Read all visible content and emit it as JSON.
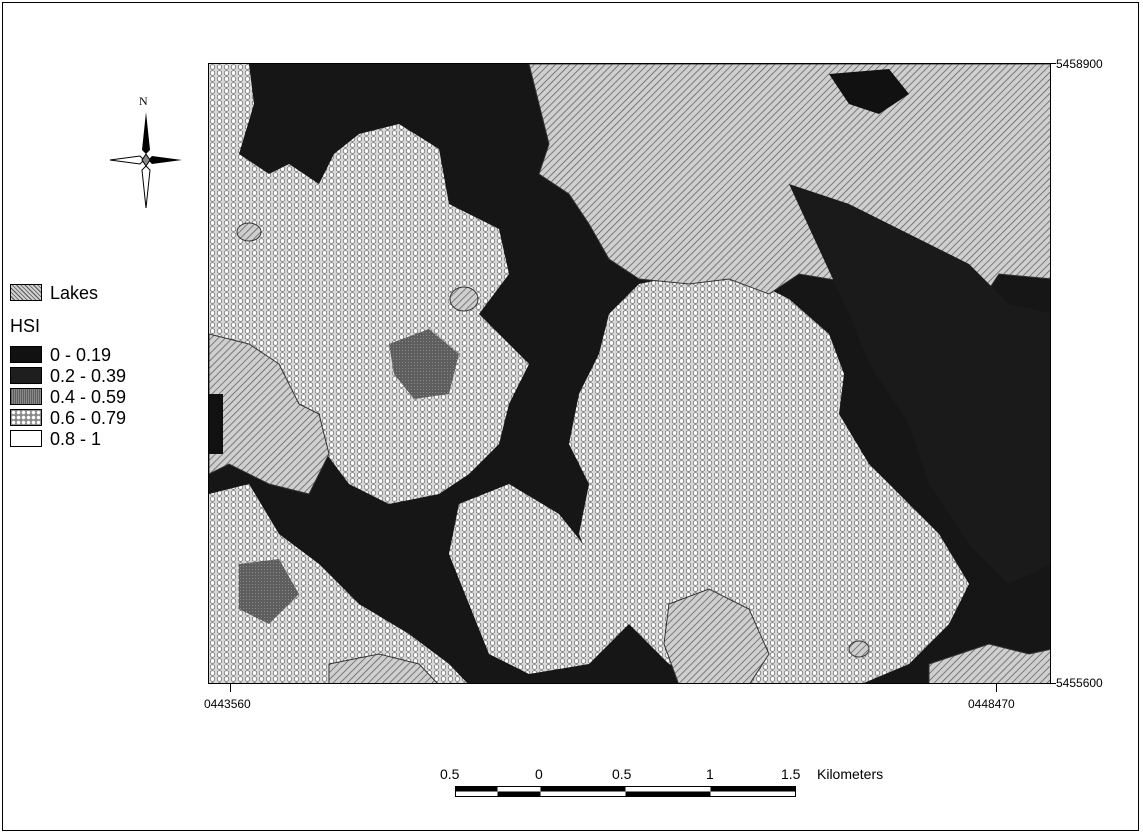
{
  "map": {
    "north_label": "N",
    "coords": {
      "top_right": "5458900",
      "bottom_right": "5455600",
      "bottom_left": "0443560",
      "bottom_right_x": "0448470"
    },
    "colors": {
      "lakes": "#c8c8c8",
      "class0": "#111111",
      "class1": "#1e1e1e",
      "class2": "#6a6a6a",
      "class3": "#cfcfcf",
      "class4": "#ffffff"
    }
  },
  "legend": {
    "lakes_label": "Lakes",
    "hsi_title": "HSI",
    "classes": [
      {
        "label": "0 - 0.19"
      },
      {
        "label": "0.2 - 0.39"
      },
      {
        "label": "0.4 - 0.59"
      },
      {
        "label": "0.6 - 0.79"
      },
      {
        "label": "0.8 - 1"
      }
    ]
  },
  "scalebar": {
    "ticks": [
      "0.5",
      "0",
      "0.5",
      "1",
      "1.5"
    ],
    "units": "Kilometers"
  }
}
